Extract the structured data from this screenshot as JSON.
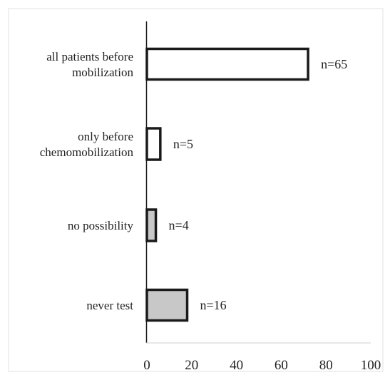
{
  "chart_data": {
    "type": "bar",
    "orientation": "horizontal",
    "categories": [
      [
        "all patients before",
        "mobilization"
      ],
      [
        "only before",
        "chemomobilization"
      ],
      [
        "no possibility"
      ],
      [
        "never test"
      ]
    ],
    "values": [
      72,
      6,
      4,
      18
    ],
    "data_labels": [
      "n=65",
      "n=5",
      "n=4",
      "n=16"
    ],
    "bar_fills": [
      "#ffffff",
      "#ffffff",
      "#c8c8c8",
      "#c8c8c8"
    ],
    "bar_stroke": "#1a1a1a",
    "xlim": [
      0,
      100
    ],
    "xticks": [
      0,
      20,
      40,
      60,
      80,
      100
    ],
    "title": "",
    "xlabel": "",
    "ylabel": "",
    "grid": false,
    "legend": "none"
  }
}
